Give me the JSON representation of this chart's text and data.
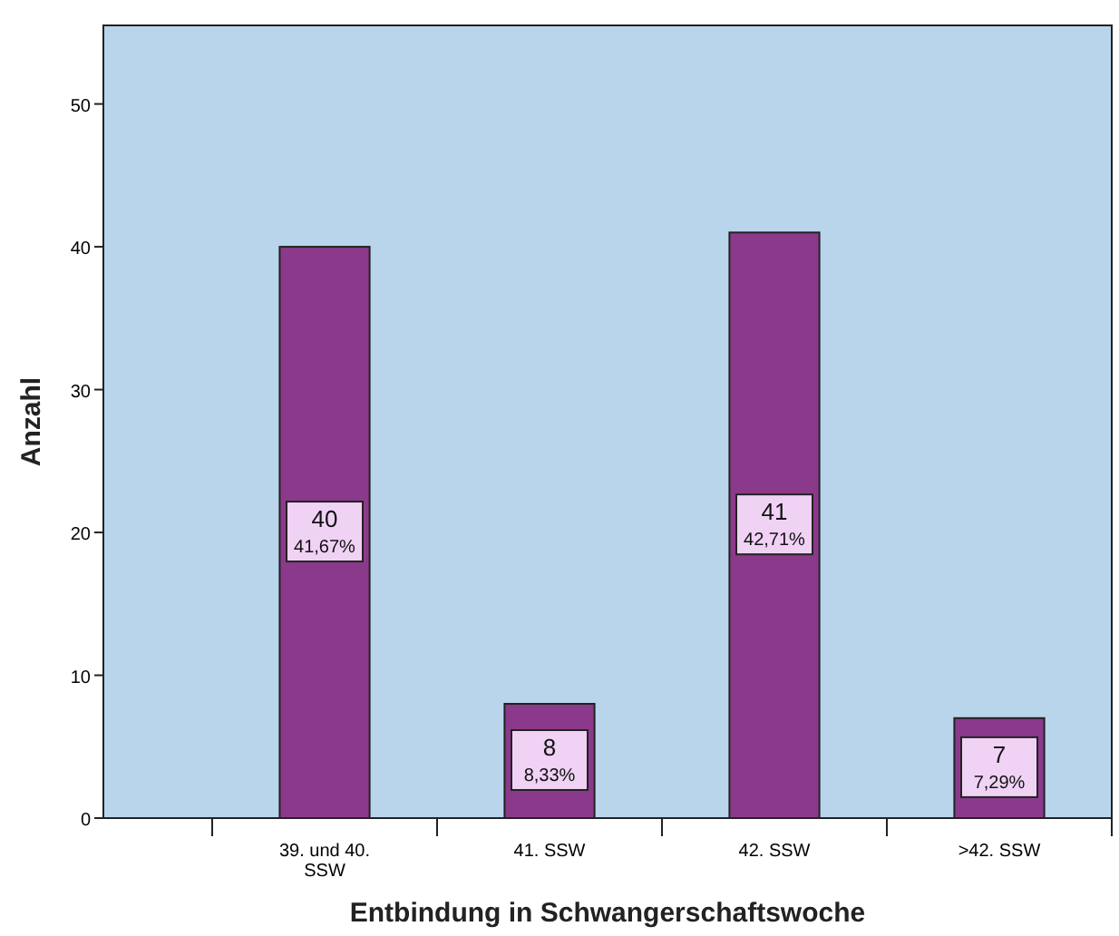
{
  "chart_data": {
    "type": "bar",
    "xlabel": "Entbindung in Schwangerschaftswoche",
    "ylabel": "Anzahl",
    "categories": [
      "39. und 40. SSW",
      "41. SSW",
      "42. SSW",
      ">42. SSW"
    ],
    "values": [
      40,
      8,
      41,
      7
    ],
    "color": "#8b3a8b",
    "value_labels": [
      "40\n41,67%",
      "8\n8,33%",
      "41\n42,71%",
      "7\n7,29%"
    ],
    "ylim": [
      0,
      55.5
    ],
    "yticks": [
      0,
      10,
      20,
      30,
      40,
      50
    ],
    "grid": false
  }
}
